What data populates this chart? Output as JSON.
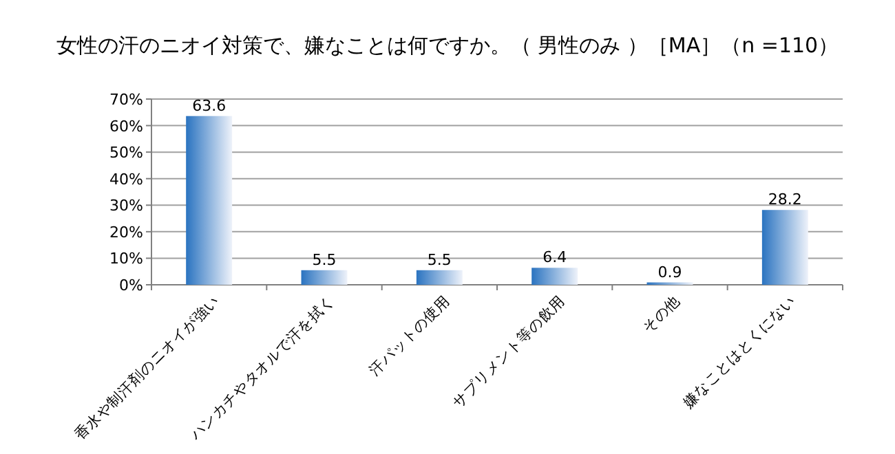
{
  "chart_data": {
    "type": "bar",
    "title": "女性の汗のニオイ対策で、嫌なことは何ですか。（ 男性のみ ）［MA］（n =110）",
    "categories": [
      "香水や制汗剤のニオイが強い",
      "ハンカチやタオルで汗を拭く",
      "汗パットの使用",
      "サプリメント等の飲用",
      "その他",
      "嫌なことはとくにない"
    ],
    "values": [
      63.6,
      5.5,
      5.5,
      6.4,
      0.9,
      28.2
    ],
    "color": "#2a73c0",
    "ylim": [
      0,
      70
    ],
    "yticks": [
      {
        "value": 0,
        "label": "0%"
      },
      {
        "value": 10,
        "label": "10%"
      },
      {
        "value": 20,
        "label": "20%"
      },
      {
        "value": 30,
        "label": "30%"
      },
      {
        "value": 40,
        "label": "40%"
      },
      {
        "value": 50,
        "label": "50%"
      },
      {
        "value": 60,
        "label": "60%"
      },
      {
        "value": 70,
        "label": "70%"
      }
    ],
    "grid": "y",
    "data_labels": true
  }
}
